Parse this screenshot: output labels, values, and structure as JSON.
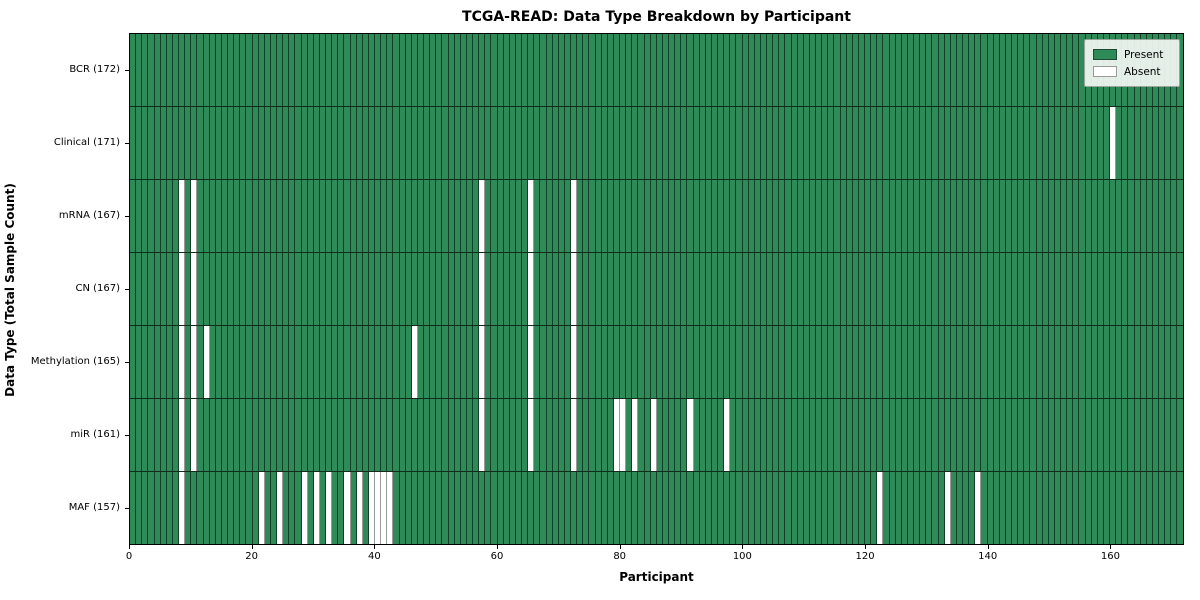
{
  "title": "TCGA-READ: Data Type Breakdown by Participant",
  "xlabel": "Participant",
  "ylabel": "Data Type (Total Sample Count)",
  "legend": {
    "present_label": "Present",
    "absent_label": "Absent"
  },
  "colors": {
    "present": "#2e8b57",
    "absent": "#ffffff",
    "cell_border": "rgba(0,0,0,0.55)",
    "row_separator": "#122b1b",
    "axes_edge": "#000000"
  },
  "chart_data": {
    "type": "heatmap",
    "title": "TCGA-READ: Data Type Breakdown by Participant",
    "xlabel": "Participant",
    "ylabel": "Data Type (Total Sample Count)",
    "n_participants": 172,
    "x_ticks": [
      0,
      20,
      40,
      60,
      80,
      100,
      120,
      140,
      160
    ],
    "legend_position": "upper right",
    "legend_entries": [
      "Present",
      "Absent"
    ],
    "rows": [
      {
        "label": "BCR (172)",
        "data_type": "BCR",
        "sample_count": 172,
        "absent_participants": []
      },
      {
        "label": "Clinical (171)",
        "data_type": "Clinical",
        "sample_count": 171,
        "absent_participants": [
          160
        ]
      },
      {
        "label": "mRNA (167)",
        "data_type": "mRNA",
        "sample_count": 167,
        "absent_participants": [
          8,
          10,
          57,
          65,
          72
        ]
      },
      {
        "label": "CN (167)",
        "data_type": "CN",
        "sample_count": 167,
        "absent_participants": [
          8,
          10,
          57,
          65,
          72
        ]
      },
      {
        "label": "Methylation (165)",
        "data_type": "Methylation",
        "sample_count": 165,
        "absent_participants": [
          8,
          10,
          12,
          46,
          57,
          65,
          72
        ]
      },
      {
        "label": "miR (161)",
        "data_type": "miR",
        "sample_count": 161,
        "absent_participants": [
          8,
          10,
          57,
          65,
          72,
          79,
          80,
          82,
          85,
          91,
          97
        ]
      },
      {
        "label": "MAF (157)",
        "data_type": "MAF",
        "sample_count": 157,
        "absent_participants": [
          8,
          21,
          24,
          28,
          30,
          32,
          35,
          37,
          39,
          40,
          41,
          42,
          122,
          133,
          138
        ]
      }
    ]
  }
}
